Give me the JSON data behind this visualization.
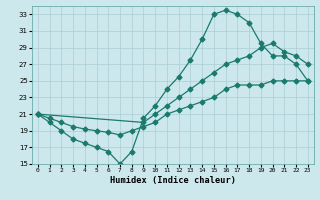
{
  "xlabel": "Humidex (Indice chaleur)",
  "bg_color": "#cde8ec",
  "grid_color": "#aacdd4",
  "line_color": "#1a7a6e",
  "xlim": [
    -0.5,
    23.5
  ],
  "ylim": [
    15,
    34
  ],
  "xticks": [
    0,
    1,
    2,
    3,
    4,
    5,
    6,
    7,
    8,
    9,
    10,
    11,
    12,
    13,
    14,
    15,
    16,
    17,
    18,
    19,
    20,
    21,
    22,
    23
  ],
  "yticks": [
    15,
    17,
    19,
    21,
    23,
    25,
    27,
    29,
    31,
    33
  ],
  "curve1_x": [
    0,
    1,
    2,
    3,
    4,
    5,
    6,
    7,
    8,
    9,
    10,
    11,
    12,
    13,
    14,
    15,
    16,
    17,
    18,
    19,
    20,
    21,
    22,
    23
  ],
  "curve1_y": [
    21,
    20,
    19,
    18,
    17.5,
    17,
    16.5,
    15,
    16.5,
    20.5,
    22,
    24,
    25.5,
    27.5,
    30,
    33,
    33.5,
    33,
    32,
    29.5,
    28,
    28,
    27,
    25
  ],
  "curve2_x": [
    0,
    9,
    10,
    11,
    12,
    13,
    14,
    15,
    16,
    17,
    18,
    19,
    20,
    21,
    22,
    23
  ],
  "curve2_y": [
    21,
    20,
    21,
    22,
    23,
    24,
    25,
    26,
    27,
    27.5,
    28,
    29,
    29.5,
    28.5,
    28,
    27
  ],
  "curve3_x": [
    0,
    1,
    2,
    3,
    4,
    5,
    6,
    7,
    8,
    9,
    10,
    11,
    12,
    13,
    14,
    15,
    16,
    17,
    18,
    19,
    20,
    21,
    22,
    23
  ],
  "curve3_y": [
    21,
    20.5,
    20,
    19.5,
    19.2,
    19,
    18.8,
    18.5,
    19,
    19.5,
    20,
    21,
    21.5,
    22,
    22.5,
    23,
    24,
    24.5,
    24.5,
    24.5,
    25,
    25,
    25,
    25
  ]
}
